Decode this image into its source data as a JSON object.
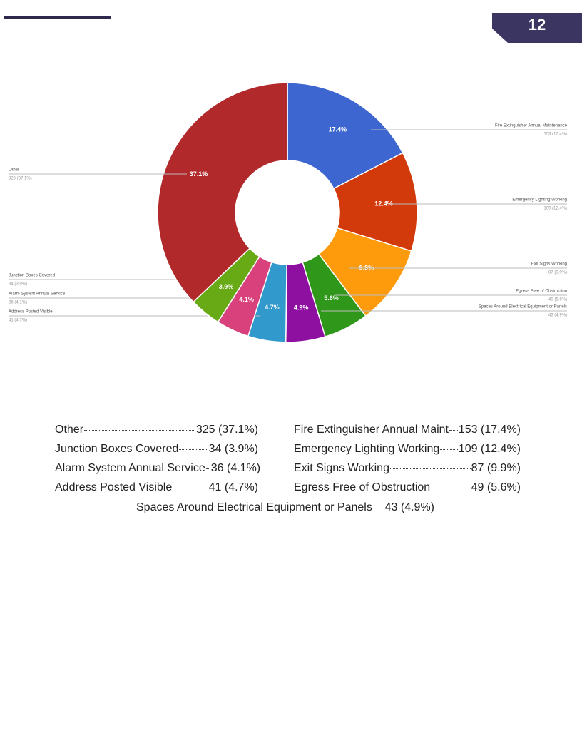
{
  "page_number": "12",
  "chart_data": {
    "type": "donut",
    "categories": [
      "Fire Extinguisher Annual Maintenance",
      "Emergency Lighting Working",
      "Exit Signs Working",
      "Egress Free of Obstruction",
      "Spaces Around Electrical Equipment or Panels",
      "Address Posted Visible",
      "Alarm System Annual Service",
      "Junction Boxes Covered",
      "Other"
    ],
    "values": [
      17.4,
      12.4,
      9.9,
      5.6,
      4.9,
      4.7,
      4.1,
      3.9,
      37.1
    ],
    "value_labels": [
      "17.4%",
      "12.4%",
      "9.9%",
      "5.6%",
      "4.9%",
      "4.7%",
      "4.1%",
      "3.9%",
      "37.1%"
    ],
    "details": [
      "153 (17.4%)",
      "109 (12.4%)",
      "87 (9.9%)",
      "49 (5.6%)",
      "43 (4.9%)",
      "41 (4.7%)",
      "36 (4.1%)",
      "34 (3.9%)",
      "325 (37.1%)"
    ],
    "colors": [
      "#3e66d1",
      "#d23a0c",
      "#fd9b0c",
      "#2f981a",
      "#8d10a0",
      "#3199cb",
      "#d8417b",
      "#68a916",
      "#b1292b"
    ]
  },
  "summary": {
    "rows": [
      [
        {
          "label": "Other",
          "value": "325 (37.1%)"
        },
        {
          "label": "Fire Extinguisher Annual Maint",
          "value": "153 (17.4%)"
        }
      ],
      [
        {
          "label": "Junction Boxes Covered",
          "value": "34 (3.9%)"
        },
        {
          "label": "Emergency Lighting Working",
          "value": "109 (12.4%)"
        }
      ],
      [
        {
          "label": "Alarm System Annual Service",
          "value": "36 (4.1%)"
        },
        {
          "label": "Exit Signs Working",
          "value": "87 (9.9%)"
        }
      ],
      [
        {
          "label": "Address Posted Visible",
          "value": "41 (4.7%)"
        },
        {
          "label": "Egress Free of Obstruction",
          "value": "49 (5.6%)"
        }
      ]
    ],
    "footer": {
      "label": "Spaces Around Electrical Equipment or Panels",
      "value": "43 (4.9%)"
    }
  }
}
